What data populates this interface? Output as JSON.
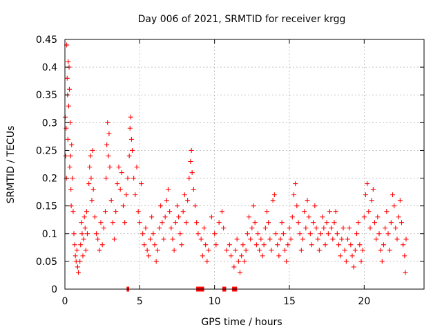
{
  "chart_data": {
    "type": "scatter",
    "title": "Day 006 of 2021, SRMTID for receiver krgg",
    "xlabel": "GPS time / hours",
    "ylabel": "SRMTID / TECUs",
    "xlim": [
      0,
      24
    ],
    "ylim": [
      0,
      0.45
    ],
    "x_ticks": [
      0,
      5,
      10,
      15,
      20
    ],
    "x_tick_labels": [
      "0",
      "5",
      "10",
      "15",
      "20"
    ],
    "y_ticks": [
      0,
      0.05,
      0.1,
      0.15,
      0.2,
      0.25,
      0.3,
      0.35,
      0.4,
      0.45
    ],
    "y_tick_labels": [
      "0",
      "0.05",
      "0.1",
      "0.15",
      "0.2",
      "0.25",
      "0.3",
      "0.35",
      "0.4",
      "0.45"
    ],
    "grid": true,
    "marker": "+",
    "color": "#ff0000",
    "series": [
      {
        "name": "SRMTID",
        "points": [
          [
            0.02,
            0.31
          ],
          [
            0.05,
            0.24
          ],
          [
            0.08,
            0.29
          ],
          [
            0.1,
            0.2
          ],
          [
            0.12,
            0.44
          ],
          [
            0.15,
            0.38
          ],
          [
            0.18,
            0.35
          ],
          [
            0.2,
            0.27
          ],
          [
            0.22,
            0.41
          ],
          [
            0.25,
            0.33
          ],
          [
            0.28,
            0.4
          ],
          [
            0.3,
            0.36
          ],
          [
            0.32,
            0.22
          ],
          [
            0.35,
            0.3
          ],
          [
            0.38,
            0.24
          ],
          [
            0.4,
            0.18
          ],
          [
            0.42,
            0.15
          ],
          [
            0.45,
            0.26
          ],
          [
            0.5,
            0.2
          ],
          [
            0.55,
            0.14
          ],
          [
            0.6,
            0.1
          ],
          [
            0.65,
            0.08
          ],
          [
            0.7,
            0.06
          ],
          [
            0.75,
            0.05
          ],
          [
            0.8,
            0.07
          ],
          [
            0.85,
            0.04
          ],
          [
            0.9,
            0.03
          ],
          [
            1.0,
            0.05
          ],
          [
            1.05,
            0.08
          ],
          [
            1.1,
            0.12
          ],
          [
            1.15,
            0.1
          ],
          [
            1.2,
            0.06
          ],
          [
            1.25,
            0.09
          ],
          [
            1.3,
            0.13
          ],
          [
            1.35,
            0.11
          ],
          [
            1.4,
            0.07
          ],
          [
            1.45,
            0.14
          ],
          [
            1.5,
            0.1
          ],
          [
            1.6,
            0.19
          ],
          [
            1.65,
            0.22
          ],
          [
            1.7,
            0.24
          ],
          [
            1.75,
            0.2
          ],
          [
            1.8,
            0.16
          ],
          [
            1.85,
            0.25
          ],
          [
            1.9,
            0.18
          ],
          [
            2.0,
            0.13
          ],
          [
            2.1,
            0.1
          ],
          [
            2.2,
            0.09
          ],
          [
            2.3,
            0.07
          ],
          [
            2.4,
            0.12
          ],
          [
            2.5,
            0.08
          ],
          [
            2.6,
            0.11
          ],
          [
            2.7,
            0.14
          ],
          [
            2.75,
            0.2
          ],
          [
            2.8,
            0.26
          ],
          [
            2.85,
            0.3
          ],
          [
            2.9,
            0.24
          ],
          [
            2.95,
            0.28
          ],
          [
            3.0,
            0.22
          ],
          [
            3.1,
            0.16
          ],
          [
            3.2,
            0.12
          ],
          [
            3.3,
            0.09
          ],
          [
            3.4,
            0.14
          ],
          [
            3.5,
            0.19
          ],
          [
            3.6,
            0.22
          ],
          [
            3.7,
            0.18
          ],
          [
            3.8,
            0.21
          ],
          [
            3.9,
            0.15
          ],
          [
            4.0,
            0.12
          ],
          [
            4.1,
            0.17
          ],
          [
            4.2,
            0.2
          ],
          [
            4.3,
            0.24
          ],
          [
            4.35,
            0.29
          ],
          [
            4.4,
            0.31
          ],
          [
            4.45,
            0.27
          ],
          [
            4.5,
            0.25
          ],
          [
            4.6,
            0.2
          ],
          [
            4.7,
            0.17
          ],
          [
            4.8,
            0.22
          ],
          [
            4.9,
            0.14
          ],
          [
            5.0,
            0.12
          ],
          [
            5.1,
            0.19
          ],
          [
            5.2,
            0.1
          ],
          [
            5.3,
            0.08
          ],
          [
            5.4,
            0.11
          ],
          [
            5.5,
            0.07
          ],
          [
            5.6,
            0.06
          ],
          [
            5.7,
            0.09
          ],
          [
            5.8,
            0.13
          ],
          [
            5.9,
            0.1
          ],
          [
            6.0,
            0.08
          ],
          [
            6.1,
            0.05
          ],
          [
            6.2,
            0.07
          ],
          [
            6.3,
            0.11
          ],
          [
            6.4,
            0.15
          ],
          [
            6.5,
            0.12
          ],
          [
            6.6,
            0.09
          ],
          [
            6.7,
            0.13
          ],
          [
            6.8,
            0.16
          ],
          [
            6.9,
            0.18
          ],
          [
            7.0,
            0.14
          ],
          [
            7.1,
            0.11
          ],
          [
            7.2,
            0.09
          ],
          [
            7.3,
            0.07
          ],
          [
            7.4,
            0.12
          ],
          [
            7.5,
            0.15
          ],
          [
            7.6,
            0.13
          ],
          [
            7.7,
            0.1
          ],
          [
            7.8,
            0.08
          ],
          [
            7.9,
            0.14
          ],
          [
            8.0,
            0.17
          ],
          [
            8.1,
            0.12
          ],
          [
            8.2,
            0.16
          ],
          [
            8.3,
            0.2
          ],
          [
            8.4,
            0.23
          ],
          [
            8.45,
            0.25
          ],
          [
            8.5,
            0.21
          ],
          [
            8.6,
            0.18
          ],
          [
            8.7,
            0.15
          ],
          [
            8.8,
            0.12
          ],
          [
            8.9,
            0.1
          ],
          [
            9.1,
            0.09
          ],
          [
            9.2,
            0.06
          ],
          [
            9.3,
            0.11
          ],
          [
            9.4,
            0.08
          ],
          [
            9.5,
            0.05
          ],
          [
            9.6,
            0.07
          ],
          [
            9.8,
            0.13
          ],
          [
            10.0,
            0.1
          ],
          [
            10.1,
            0.08
          ],
          [
            10.3,
            0.12
          ],
          [
            10.5,
            0.14
          ],
          [
            10.6,
            0.11
          ],
          [
            10.8,
            0.07
          ],
          [
            11.0,
            0.08
          ],
          [
            11.1,
            0.06
          ],
          [
            11.3,
            0.04
          ],
          [
            11.4,
            0.07
          ],
          [
            11.5,
            0.09
          ],
          [
            11.6,
            0.05
          ],
          [
            11.7,
            0.03
          ],
          [
            11.8,
            0.06
          ],
          [
            11.9,
            0.08
          ],
          [
            12.0,
            0.05
          ],
          [
            12.1,
            0.07
          ],
          [
            12.2,
            0.1
          ],
          [
            12.3,
            0.13
          ],
          [
            12.4,
            0.09
          ],
          [
            12.5,
            0.11
          ],
          [
            12.6,
            0.15
          ],
          [
            12.7,
            0.12
          ],
          [
            12.8,
            0.08
          ],
          [
            12.9,
            0.1
          ],
          [
            13.0,
            0.07
          ],
          [
            13.1,
            0.09
          ],
          [
            13.2,
            0.06
          ],
          [
            13.3,
            0.08
          ],
          [
            13.4,
            0.11
          ],
          [
            13.5,
            0.14
          ],
          [
            13.6,
            0.12
          ],
          [
            13.7,
            0.09
          ],
          [
            13.8,
            0.07
          ],
          [
            13.9,
            0.16
          ],
          [
            14.0,
            0.17
          ],
          [
            14.1,
            0.1
          ],
          [
            14.2,
            0.08
          ],
          [
            14.3,
            0.06
          ],
          [
            14.4,
            0.09
          ],
          [
            14.5,
            0.12
          ],
          [
            14.6,
            0.1
          ],
          [
            14.7,
            0.07
          ],
          [
            14.8,
            0.05
          ],
          [
            14.9,
            0.08
          ],
          [
            15.0,
            0.11
          ],
          [
            15.1,
            0.09
          ],
          [
            15.2,
            0.13
          ],
          [
            15.3,
            0.17
          ],
          [
            15.4,
            0.19
          ],
          [
            15.5,
            0.15
          ],
          [
            15.6,
            0.12
          ],
          [
            15.7,
            0.1
          ],
          [
            15.8,
            0.07
          ],
          [
            15.9,
            0.09
          ],
          [
            16.0,
            0.14
          ],
          [
            16.1,
            0.11
          ],
          [
            16.2,
            0.16
          ],
          [
            16.3,
            0.13
          ],
          [
            16.4,
            0.1
          ],
          [
            16.5,
            0.08
          ],
          [
            16.6,
            0.12
          ],
          [
            16.7,
            0.15
          ],
          [
            16.8,
            0.11
          ],
          [
            16.9,
            0.09
          ],
          [
            17.0,
            0.07
          ],
          [
            17.1,
            0.1
          ],
          [
            17.2,
            0.13
          ],
          [
            17.3,
            0.11
          ],
          [
            17.4,
            0.08
          ],
          [
            17.5,
            0.12
          ],
          [
            17.6,
            0.1
          ],
          [
            17.7,
            0.14
          ],
          [
            17.8,
            0.11
          ],
          [
            17.9,
            0.09
          ],
          [
            18.0,
            0.12
          ],
          [
            18.1,
            0.14
          ],
          [
            18.2,
            0.1
          ],
          [
            18.3,
            0.08
          ],
          [
            18.4,
            0.06
          ],
          [
            18.5,
            0.09
          ],
          [
            18.6,
            0.11
          ],
          [
            18.7,
            0.07
          ],
          [
            18.8,
            0.05
          ],
          [
            18.9,
            0.09
          ],
          [
            19.0,
            0.11
          ],
          [
            19.1,
            0.08
          ],
          [
            19.2,
            0.06
          ],
          [
            19.3,
            0.04
          ],
          [
            19.4,
            0.07
          ],
          [
            19.5,
            0.1
          ],
          [
            19.6,
            0.12
          ],
          [
            19.7,
            0.08
          ],
          [
            19.8,
            0.05
          ],
          [
            19.9,
            0.07
          ],
          [
            20.0,
            0.13
          ],
          [
            20.1,
            0.17
          ],
          [
            20.2,
            0.19
          ],
          [
            20.3,
            0.14
          ],
          [
            20.4,
            0.11
          ],
          [
            20.5,
            0.16
          ],
          [
            20.6,
            0.18
          ],
          [
            20.7,
            0.12
          ],
          [
            20.8,
            0.09
          ],
          [
            20.9,
            0.13
          ],
          [
            21.0,
            0.1
          ],
          [
            21.1,
            0.07
          ],
          [
            21.2,
            0.05
          ],
          [
            21.3,
            0.08
          ],
          [
            21.4,
            0.11
          ],
          [
            21.5,
            0.14
          ],
          [
            21.6,
            0.1
          ],
          [
            21.7,
            0.07
          ],
          [
            21.8,
            0.12
          ],
          [
            21.9,
            0.17
          ],
          [
            22.0,
            0.15
          ],
          [
            22.1,
            0.11
          ],
          [
            22.2,
            0.09
          ],
          [
            22.3,
            0.13
          ],
          [
            22.4,
            0.16
          ],
          [
            22.5,
            0.12
          ],
          [
            22.6,
            0.08
          ],
          [
            22.7,
            0.06
          ],
          [
            22.75,
            0.03
          ],
          [
            22.8,
            0.09
          ]
        ]
      }
    ],
    "zero_value_intervals": [
      [
        4.15,
        4.28
      ],
      [
        8.8,
        9.3
      ],
      [
        10.55,
        10.75
      ],
      [
        11.2,
        11.5
      ]
    ]
  }
}
